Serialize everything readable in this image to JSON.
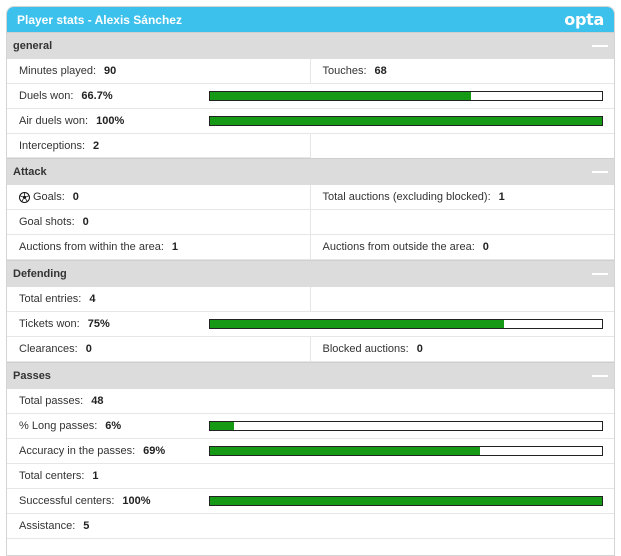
{
  "header": {
    "title": "Player stats - Alexis Sánchez",
    "logo": "opta"
  },
  "sections": {
    "general": {
      "title": "general",
      "minutes_label": "Minutes played:",
      "minutes_value": "90",
      "touches_label": "Touches:",
      "touches_value": "68",
      "duels_label": "Duels won:",
      "duels_value": "66.7%",
      "duels_fill": 0.667,
      "air_label": "Air duels won:",
      "air_value": "100%",
      "air_fill": 1.0,
      "interceptions_label": "Interceptions:",
      "interceptions_value": "2"
    },
    "attack": {
      "title": "Attack",
      "goals_label": "Goals:",
      "goals_value": "0",
      "total_auctions_label": "Total auctions (excluding blocked):",
      "total_auctions_value": "1",
      "goal_shots_label": "Goal shots:",
      "goal_shots_value": "0",
      "within_label": "Auctions from within the area:",
      "within_value": "1",
      "outside_label": "Auctions from outside the area:",
      "outside_value": "0"
    },
    "defending": {
      "title": "Defending",
      "entries_label": "Total entries:",
      "entries_value": "4",
      "tickets_label": "Tickets won:",
      "tickets_value": "75%",
      "tickets_fill": 0.75,
      "clearances_label": "Clearances:",
      "clearances_value": "0",
      "blocked_label": "Blocked auctions:",
      "blocked_value": "0"
    },
    "passes": {
      "title": "Passes",
      "total_label": "Total passes:",
      "total_value": "48",
      "long_label": "% Long passes:",
      "long_value": "6%",
      "long_fill": 0.06,
      "accuracy_label": "Accuracy in the passes:",
      "accuracy_value": "69%",
      "accuracy_fill": 0.69,
      "centers_label": "Total centers:",
      "centers_value": "1",
      "successful_label": "Successful centers:",
      "successful_value": "100%",
      "successful_fill": 1.0,
      "assistance_label": "Assistance:",
      "assistance_value": "5"
    }
  },
  "colors": {
    "header": "#3cc0ec",
    "section": "#dcdcdc",
    "bar_fill": "#169a16"
  },
  "icons": {
    "collapse": "minus-icon",
    "goals": "soccer-ball-icon"
  }
}
